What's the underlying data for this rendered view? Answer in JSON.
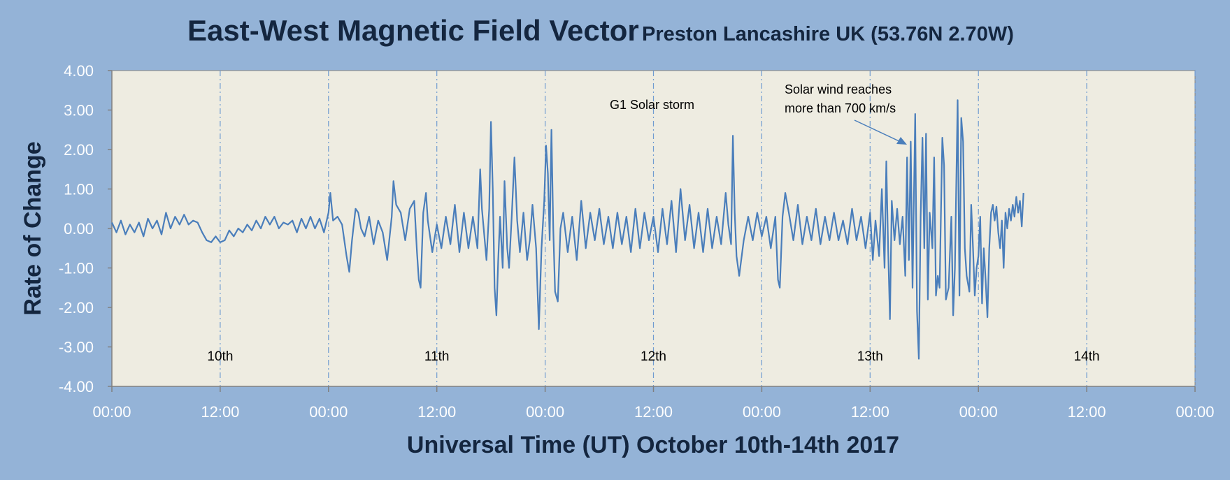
{
  "chart_data": {
    "type": "line",
    "title": "East-West Magnetic Field Vector",
    "subtitle": "Preston Lancashire UK (53.76N 2.70W)",
    "xlabel": "Universal Time (UT) October 10th-14th 2017",
    "ylabel": "Rate of Change",
    "ylim": [
      -4,
      4
    ],
    "xlim_hours": [
      0,
      120
    ],
    "y_ticks": [
      "4.00",
      "3.00",
      "2.00",
      "1.00",
      "0.00",
      "-1.00",
      "-2.00",
      "-3.00",
      "-4.00"
    ],
    "x_ticks": [
      "00:00",
      "12:00",
      "00:00",
      "12:00",
      "00:00",
      "12:00",
      "00:00",
      "12:00",
      "00:00",
      "12:00",
      "00:00"
    ],
    "grid": "vertical dash-dot lines every 12 hours",
    "day_labels": [
      {
        "text": "10th",
        "hour": 12
      },
      {
        "text": "11th",
        "hour": 36
      },
      {
        "text": "12th",
        "hour": 60
      },
      {
        "text": "13th",
        "hour": 84
      },
      {
        "text": "14th",
        "hour": 108
      }
    ],
    "annotations": [
      {
        "text": "G1 Solar storm",
        "hour": 60
      },
      {
        "text": "Solar wind reaches",
        "hour": 87.5
      },
      {
        "text": "more than 700 km/s",
        "hour": 87.5
      }
    ],
    "series": [
      {
        "color": "#4a7ebb",
        "points": [
          [
            0,
            0.15
          ],
          [
            0.5,
            -0.1
          ],
          [
            1,
            0.2
          ],
          [
            1.5,
            -0.15
          ],
          [
            2,
            0.1
          ],
          [
            2.5,
            -0.1
          ],
          [
            3,
            0.15
          ],
          [
            3.5,
            -0.2
          ],
          [
            4,
            0.25
          ],
          [
            4.5,
            0.0
          ],
          [
            5,
            0.2
          ],
          [
            5.5,
            -0.15
          ],
          [
            6,
            0.4
          ],
          [
            6.5,
            0.0
          ],
          [
            7,
            0.3
          ],
          [
            7.5,
            0.1
          ],
          [
            8,
            0.35
          ],
          [
            8.5,
            0.1
          ],
          [
            9,
            0.2
          ],
          [
            9.5,
            0.15
          ],
          [
            10,
            -0.1
          ],
          [
            10.5,
            -0.3
          ],
          [
            11,
            -0.35
          ],
          [
            11.5,
            -0.2
          ],
          [
            12,
            -0.35
          ],
          [
            12.5,
            -0.3
          ],
          [
            13,
            -0.05
          ],
          [
            13.5,
            -0.2
          ],
          [
            14,
            0.0
          ],
          [
            14.5,
            -0.1
          ],
          [
            15,
            0.1
          ],
          [
            15.5,
            -0.05
          ],
          [
            16,
            0.2
          ],
          [
            16.5,
            0.0
          ],
          [
            17,
            0.3
          ],
          [
            17.5,
            0.1
          ],
          [
            18,
            0.3
          ],
          [
            18.5,
            0.0
          ],
          [
            19,
            0.15
          ],
          [
            19.5,
            0.1
          ],
          [
            20,
            0.2
          ],
          [
            20.5,
            -0.1
          ],
          [
            21,
            0.25
          ],
          [
            21.5,
            0.0
          ],
          [
            22,
            0.3
          ],
          [
            22.5,
            0.0
          ],
          [
            23,
            0.25
          ],
          [
            23.5,
            -0.1
          ],
          [
            24,
            0.4
          ],
          [
            24.2,
            0.9
          ],
          [
            24.5,
            0.2
          ],
          [
            25,
            0.3
          ],
          [
            25.5,
            0.1
          ],
          [
            26,
            -0.7
          ],
          [
            26.3,
            -1.1
          ],
          [
            26.6,
            -0.3
          ],
          [
            27,
            0.5
          ],
          [
            27.3,
            0.4
          ],
          [
            27.6,
            0.0
          ],
          [
            28,
            -0.2
          ],
          [
            28.5,
            0.3
          ],
          [
            29,
            -0.4
          ],
          [
            29.5,
            0.2
          ],
          [
            30,
            -0.1
          ],
          [
            30.5,
            -0.8
          ],
          [
            31,
            0.3
          ],
          [
            31.2,
            1.2
          ],
          [
            31.5,
            0.6
          ],
          [
            32,
            0.4
          ],
          [
            32.5,
            -0.3
          ],
          [
            33,
            0.5
          ],
          [
            33.5,
            0.7
          ],
          [
            33.8,
            -0.6
          ],
          [
            34,
            -1.3
          ],
          [
            34.2,
            -1.5
          ],
          [
            34.5,
            0.4
          ],
          [
            34.8,
            0.9
          ],
          [
            35,
            0.2
          ],
          [
            35.5,
            -0.6
          ],
          [
            36,
            0.1
          ],
          [
            36.5,
            -0.5
          ],
          [
            37,
            0.3
          ],
          [
            37.5,
            -0.4
          ],
          [
            38,
            0.6
          ],
          [
            38.5,
            -0.6
          ],
          [
            39,
            0.4
          ],
          [
            39.5,
            -0.5
          ],
          [
            40,
            0.3
          ],
          [
            40.5,
            -0.5
          ],
          [
            40.8,
            1.5
          ],
          [
            41,
            0.5
          ],
          [
            41.5,
            -0.8
          ],
          [
            41.8,
            0.5
          ],
          [
            42,
            2.7
          ],
          [
            42.2,
            1.0
          ],
          [
            42.4,
            -1.5
          ],
          [
            42.6,
            -2.2
          ],
          [
            42.8,
            -0.8
          ],
          [
            43,
            0.3
          ],
          [
            43.3,
            -1.0
          ],
          [
            43.5,
            1.2
          ],
          [
            43.8,
            -0.5
          ],
          [
            44,
            -1.0
          ],
          [
            44.3,
            0.3
          ],
          [
            44.6,
            1.8
          ],
          [
            44.9,
            0.2
          ],
          [
            45.2,
            -0.6
          ],
          [
            45.6,
            0.4
          ],
          [
            46,
            -0.8
          ],
          [
            46.3,
            -0.3
          ],
          [
            46.6,
            0.6
          ],
          [
            47,
            -0.5
          ],
          [
            47.3,
            -2.55
          ],
          [
            47.6,
            -0.5
          ],
          [
            47.9,
            0.7
          ],
          [
            48.1,
            2.1
          ],
          [
            48.3,
            1.4
          ],
          [
            48.5,
            -0.3
          ],
          [
            48.7,
            2.5
          ],
          [
            48.9,
            0.0
          ],
          [
            49.1,
            -1.6
          ],
          [
            49.4,
            -1.85
          ],
          [
            49.7,
            0.0
          ],
          [
            50,
            0.4
          ],
          [
            50.5,
            -0.6
          ],
          [
            51,
            0.3
          ],
          [
            51.5,
            -0.8
          ],
          [
            52,
            0.7
          ],
          [
            52.5,
            -0.5
          ],
          [
            53,
            0.4
          ],
          [
            53.5,
            -0.3
          ],
          [
            54,
            0.5
          ],
          [
            54.5,
            -0.4
          ],
          [
            55,
            0.3
          ],
          [
            55.5,
            -0.5
          ],
          [
            56,
            0.4
          ],
          [
            56.5,
            -0.4
          ],
          [
            57,
            0.3
          ],
          [
            57.5,
            -0.6
          ],
          [
            58,
            0.5
          ],
          [
            58.5,
            -0.5
          ],
          [
            59,
            0.4
          ],
          [
            59.5,
            -0.3
          ],
          [
            60,
            0.3
          ],
          [
            60.5,
            -0.6
          ],
          [
            61,
            0.5
          ],
          [
            61.5,
            -0.4
          ],
          [
            62,
            0.7
          ],
          [
            62.5,
            -0.6
          ],
          [
            63,
            1.0
          ],
          [
            63.5,
            -0.3
          ],
          [
            64,
            0.6
          ],
          [
            64.5,
            -0.5
          ],
          [
            65,
            0.4
          ],
          [
            65.5,
            -0.6
          ],
          [
            66,
            0.5
          ],
          [
            66.5,
            -0.5
          ],
          [
            67,
            0.3
          ],
          [
            67.5,
            -0.4
          ],
          [
            68,
            0.9
          ],
          [
            68.3,
            0.1
          ],
          [
            68.6,
            -0.4
          ],
          [
            68.8,
            2.35
          ],
          [
            69,
            0.4
          ],
          [
            69.2,
            -0.7
          ],
          [
            69.5,
            -1.2
          ],
          [
            70,
            -0.3
          ],
          [
            70.5,
            0.3
          ],
          [
            71,
            -0.3
          ],
          [
            71.5,
            0.4
          ],
          [
            72,
            -0.2
          ],
          [
            72.5,
            0.3
          ],
          [
            73,
            -0.5
          ],
          [
            73.5,
            0.3
          ],
          [
            73.8,
            -1.3
          ],
          [
            74,
            -1.5
          ],
          [
            74.3,
            0.3
          ],
          [
            74.6,
            0.9
          ],
          [
            75,
            0.4
          ],
          [
            75.5,
            -0.3
          ],
          [
            76,
            0.6
          ],
          [
            76.5,
            -0.4
          ],
          [
            77,
            0.3
          ],
          [
            77.5,
            -0.3
          ],
          [
            78,
            0.5
          ],
          [
            78.5,
            -0.4
          ],
          [
            79,
            0.3
          ],
          [
            79.5,
            -0.3
          ],
          [
            80,
            0.4
          ],
          [
            80.5,
            -0.3
          ],
          [
            81,
            0.2
          ],
          [
            81.5,
            -0.4
          ],
          [
            82,
            0.5
          ],
          [
            82.5,
            -0.3
          ],
          [
            83,
            0.3
          ],
          [
            83.5,
            -0.5
          ],
          [
            84,
            0.4
          ],
          [
            84.3,
            -0.8
          ],
          [
            84.6,
            0.2
          ],
          [
            85,
            -0.7
          ],
          [
            85.3,
            1.0
          ],
          [
            85.6,
            -1.0
          ],
          [
            85.8,
            1.7
          ],
          [
            86,
            -0.5
          ],
          [
            86.2,
            -2.3
          ],
          [
            86.4,
            0.7
          ],
          [
            86.7,
            -0.3
          ],
          [
            87,
            0.5
          ],
          [
            87.3,
            -0.4
          ],
          [
            87.6,
            0.3
          ],
          [
            87.9,
            -1.2
          ],
          [
            88.1,
            1.8
          ],
          [
            88.3,
            -0.8
          ],
          [
            88.5,
            2.2
          ],
          [
            88.7,
            -1.5
          ],
          [
            89,
            2.9
          ],
          [
            89.2,
            -2.1
          ],
          [
            89.4,
            -3.3
          ],
          [
            89.6,
            0.3
          ],
          [
            89.8,
            2.3
          ],
          [
            90,
            -0.5
          ],
          [
            90.2,
            2.4
          ],
          [
            90.4,
            -1.8
          ],
          [
            90.6,
            0.4
          ],
          [
            90.9,
            -0.5
          ],
          [
            91.1,
            1.8
          ],
          [
            91.3,
            -1.7
          ],
          [
            91.5,
            -1.2
          ],
          [
            91.7,
            -1.5
          ],
          [
            92,
            2.3
          ],
          [
            92.2,
            1.6
          ],
          [
            92.4,
            -1.8
          ],
          [
            92.7,
            -1.5
          ],
          [
            93,
            0.3
          ],
          [
            93.2,
            -2.2
          ],
          [
            93.4,
            -1.0
          ],
          [
            93.7,
            3.25
          ],
          [
            93.9,
            -1.7
          ],
          [
            94.1,
            2.8
          ],
          [
            94.3,
            2.2
          ],
          [
            94.5,
            -0.5
          ],
          [
            94.7,
            -1.2
          ],
          [
            95,
            -1.6
          ],
          [
            95.2,
            0.6
          ],
          [
            95.4,
            -0.5
          ],
          [
            95.6,
            -1.7
          ],
          [
            95.8,
            -1.0
          ],
          [
            96,
            -0.7
          ],
          [
            96.2,
            0.3
          ],
          [
            96.4,
            -1.9
          ],
          [
            96.6,
            -0.5
          ],
          [
            96.8,
            -1.3
          ],
          [
            97,
            -2.25
          ],
          [
            97.2,
            -0.5
          ],
          [
            97.4,
            0.4
          ],
          [
            97.6,
            0.6
          ],
          [
            97.8,
            0.2
          ],
          [
            98,
            0.55
          ],
          [
            98.2,
            -0.1
          ],
          [
            98.4,
            -0.5
          ],
          [
            98.6,
            0.2
          ],
          [
            98.8,
            -1.0
          ],
          [
            99,
            0.4
          ],
          [
            99.2,
            0.0
          ],
          [
            99.4,
            0.5
          ],
          [
            99.6,
            0.2
          ],
          [
            99.8,
            0.6
          ],
          [
            100,
            0.3
          ],
          [
            100.2,
            0.8
          ],
          [
            100.4,
            0.4
          ],
          [
            100.6,
            0.7
          ],
          [
            100.8,
            0.05
          ],
          [
            101,
            0.9
          ]
        ]
      }
    ]
  }
}
